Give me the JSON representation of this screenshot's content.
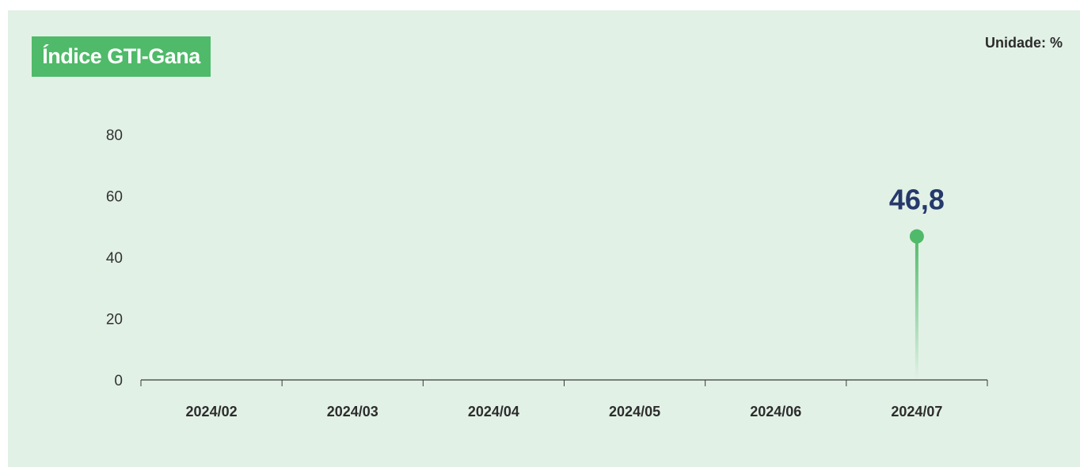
{
  "title": "Índice GTI-Gana",
  "unit_label": "Unidade: %",
  "colors": {
    "panel_background": "#e2f1e6",
    "title_background": "#4fba69",
    "marker": "#4fba69",
    "data_label": "#26396b"
  },
  "chart_data": {
    "type": "lollipop",
    "title": "Índice GTI-Gana",
    "unit": "%",
    "categories": [
      "2024/02",
      "2024/03",
      "2024/04",
      "2024/05",
      "2024/06",
      "2024/07"
    ],
    "values": [
      null,
      null,
      null,
      null,
      null,
      46.8
    ],
    "data_labels": [
      "",
      "",
      "",
      "",
      "",
      "46,8"
    ],
    "y_ticks": [
      "0",
      "20",
      "40",
      "60",
      "80"
    ],
    "ylim": [
      0,
      80
    ],
    "grid": false,
    "legend": "none"
  }
}
